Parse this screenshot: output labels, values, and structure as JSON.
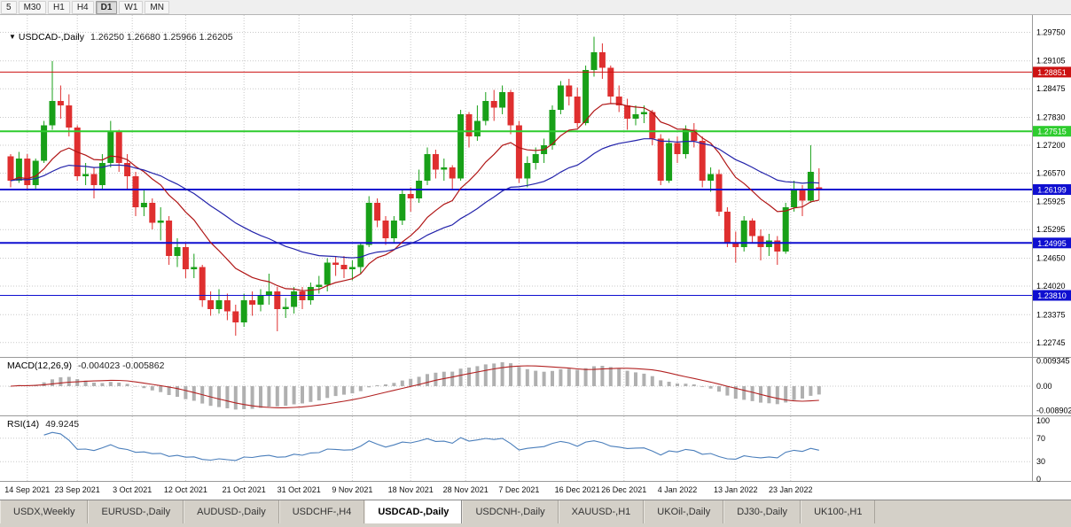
{
  "toolbar": {
    "periods": [
      {
        "label": "5",
        "active": false
      },
      {
        "label": "M30",
        "active": false
      },
      {
        "label": "H1",
        "active": false
      },
      {
        "label": "H4",
        "active": false
      },
      {
        "label": "D1",
        "active": true
      },
      {
        "label": "W1",
        "active": false
      },
      {
        "label": "MN",
        "active": false
      }
    ]
  },
  "price_pane": {
    "title_symbol": "USDCAD-,Daily",
    "title_ohlc": "1.26250 1.26680 1.25966 1.26205"
  },
  "macd_pane": {
    "label": "MACD(12,26,9)",
    "values": "-0.004023 -0.005862"
  },
  "rsi_pane": {
    "label": "RSI(14)",
    "value": "49.9245"
  },
  "tabs": {
    "items": [
      {
        "label": "USDX,Weekly",
        "active": false
      },
      {
        "label": "EURUSD-,Daily",
        "active": false
      },
      {
        "label": "AUDUSD-,Daily",
        "active": false
      },
      {
        "label": "USDCHF-,H4",
        "active": false
      },
      {
        "label": "USDCAD-,Daily",
        "active": true
      },
      {
        "label": "USDCNH-,Daily",
        "active": false
      },
      {
        "label": "XAUUSD-,H1",
        "active": false
      },
      {
        "label": "UKOil-,Daily",
        "active": false
      },
      {
        "label": "DJ30-,Daily",
        "active": false
      },
      {
        "label": "UK100-,H1",
        "active": false
      }
    ]
  },
  "colors": {
    "up": "#18a018",
    "down": "#df2f2f",
    "ma_fast": "#b01515",
    "ma_slow": "#2222aa",
    "macd_hist": "#b0b0b0",
    "macd_signal": "#b22222",
    "rsi": "#4a7ebb",
    "grid": "#c9c9c9",
    "axis_text": "#000000"
  },
  "chart_data": {
    "type": "candlestick",
    "symbol": "USDCAD-",
    "timeframe": "Daily",
    "title": "USDCAD-,Daily",
    "last_ohlc": {
      "open": 1.2625,
      "high": 1.2668,
      "low": 1.25966,
      "close": 1.26205
    },
    "price_axis_ticks": [
      1.2975,
      1.29105,
      1.28475,
      1.2783,
      1.272,
      1.2657,
      1.25925,
      1.25295,
      1.2465,
      1.2402,
      1.23375,
      1.22745
    ],
    "horizontal_lines": [
      {
        "price": 1.28851,
        "label": "1.28851",
        "color": "#cc1111",
        "width": 1
      },
      {
        "price": 1.27515,
        "label": "1.27515",
        "color": "#2ecc2e",
        "width": 2
      },
      {
        "price": 1.26199,
        "label": "1.26199",
        "color": "#0f0fd0",
        "width": 2
      },
      {
        "price": 1.24995,
        "label": "1.24995",
        "color": "#0f0fd0",
        "width": 2
      },
      {
        "price": 1.2381,
        "label": "1.23810",
        "color": "#0f0fd0",
        "width": 1
      }
    ],
    "x_labels": [
      {
        "t": "14 Sep 2021",
        "i": 2
      },
      {
        "t": "23 Sep 2021",
        "i": 8
      },
      {
        "t": "3 Oct 2021",
        "i": 14.6
      },
      {
        "t": "12 Oct 2021",
        "i": 21
      },
      {
        "t": "21 Oct 2021",
        "i": 28
      },
      {
        "t": "31 Oct 2021",
        "i": 34.6
      },
      {
        "t": "9 Nov 2021",
        "i": 41
      },
      {
        "t": "18 Nov 2021",
        "i": 48
      },
      {
        "t": "28 Nov 2021",
        "i": 54.6
      },
      {
        "t": "7 Dec 2021",
        "i": 61
      },
      {
        "t": "16 Dec 2021",
        "i": 68
      },
      {
        "t": "26 Dec 2021",
        "i": 73.6
      },
      {
        "t": "4 Jan 2022",
        "i": 80
      },
      {
        "t": "13 Jan 2022",
        "i": 87
      },
      {
        "t": "23 Jan 2022",
        "i": 93.6
      }
    ],
    "moving_averages": [
      {
        "period": 13,
        "method": "ema",
        "color": "#b01515"
      },
      {
        "period": 34,
        "method": "ema",
        "color": "#2222aa"
      }
    ],
    "macd": {
      "params": [
        12,
        26,
        9
      ],
      "current_macd": -0.004023,
      "current_signal": -0.005862,
      "axis_labels": [
        "0.009345",
        "0.00",
        "-0.008902"
      ],
      "axis_values": [
        0.009345,
        0,
        -0.008902
      ]
    },
    "rsi": {
      "period": 14,
      "current": 49.9245,
      "levels": [
        70,
        30
      ],
      "axis_labels": [
        "100",
        "70",
        "30",
        "0"
      ],
      "axis_values": [
        100,
        70,
        30,
        0
      ]
    },
    "candles": [
      [
        1.2695,
        1.27,
        1.2625,
        1.264
      ],
      [
        1.264,
        1.2705,
        1.2635,
        1.269
      ],
      [
        1.269,
        1.27,
        1.262,
        1.263
      ],
      [
        1.263,
        1.269,
        1.262,
        1.2685
      ],
      [
        1.2685,
        1.2775,
        1.268,
        1.2765
      ],
      [
        1.2765,
        1.291,
        1.2755,
        1.282
      ],
      [
        1.282,
        1.2855,
        1.278,
        1.281
      ],
      [
        1.281,
        1.2835,
        1.274,
        1.276
      ],
      [
        1.276,
        1.2765,
        1.264,
        1.265
      ],
      [
        1.265,
        1.268,
        1.263,
        1.2655
      ],
      [
        1.2655,
        1.267,
        1.26,
        1.263
      ],
      [
        1.263,
        1.27,
        1.262,
        1.268
      ],
      [
        1.268,
        1.2775,
        1.267,
        1.275
      ],
      [
        1.275,
        1.2755,
        1.266,
        1.268
      ],
      [
        1.268,
        1.27,
        1.262,
        1.265
      ],
      [
        1.265,
        1.266,
        1.256,
        1.258
      ],
      [
        1.258,
        1.262,
        1.256,
        1.259
      ],
      [
        1.259,
        1.26,
        1.253,
        1.2545
      ],
      [
        1.2545,
        1.258,
        1.2505,
        1.255
      ],
      [
        1.255,
        1.256,
        1.245,
        1.247
      ],
      [
        1.247,
        1.251,
        1.2445,
        1.249
      ],
      [
        1.249,
        1.25,
        1.242,
        1.244
      ],
      [
        1.244,
        1.2475,
        1.242,
        1.2445
      ],
      [
        1.2445,
        1.245,
        1.2355,
        1.237
      ],
      [
        1.237,
        1.239,
        1.2335,
        1.235
      ],
      [
        1.235,
        1.2395,
        1.234,
        1.237
      ],
      [
        1.237,
        1.2385,
        1.2325,
        1.2345
      ],
      [
        1.2345,
        1.236,
        1.229,
        1.232
      ],
      [
        1.232,
        1.2385,
        1.231,
        1.237
      ],
      [
        1.237,
        1.239,
        1.2335,
        1.236
      ],
      [
        1.236,
        1.2395,
        1.2345,
        1.238
      ],
      [
        1.238,
        1.243,
        1.236,
        1.239
      ],
      [
        1.239,
        1.24,
        1.23,
        1.235
      ],
      [
        1.235,
        1.2375,
        1.233,
        1.2355
      ],
      [
        1.2355,
        1.24,
        1.234,
        1.239
      ],
      [
        1.239,
        1.24,
        1.235,
        1.237
      ],
      [
        1.237,
        1.241,
        1.236,
        1.24
      ],
      [
        1.24,
        1.2425,
        1.2385,
        1.2405
      ],
      [
        1.2405,
        1.2465,
        1.239,
        1.2455
      ],
      [
        1.2455,
        1.247,
        1.2425,
        1.245
      ],
      [
        1.245,
        1.247,
        1.242,
        1.244
      ],
      [
        1.244,
        1.246,
        1.2415,
        1.2445
      ],
      [
        1.2445,
        1.25,
        1.243,
        1.2495
      ],
      [
        1.2495,
        1.2605,
        1.249,
        1.259
      ],
      [
        1.259,
        1.26,
        1.2535,
        1.255
      ],
      [
        1.255,
        1.256,
        1.2495,
        1.251
      ],
      [
        1.251,
        1.256,
        1.25,
        1.255
      ],
      [
        1.255,
        1.262,
        1.254,
        1.261
      ],
      [
        1.261,
        1.2625,
        1.257,
        1.26
      ],
      [
        1.26,
        1.2665,
        1.259,
        1.264
      ],
      [
        1.264,
        1.2715,
        1.263,
        1.27
      ],
      [
        1.27,
        1.271,
        1.2645,
        1.2665
      ],
      [
        1.2665,
        1.269,
        1.264,
        1.267
      ],
      [
        1.267,
        1.2675,
        1.262,
        1.2645
      ],
      [
        1.2645,
        1.28,
        1.264,
        1.279
      ],
      [
        1.279,
        1.2795,
        1.2715,
        1.274
      ],
      [
        1.274,
        1.281,
        1.273,
        1.2775
      ],
      [
        1.2775,
        1.284,
        1.2765,
        1.282
      ],
      [
        1.282,
        1.2845,
        1.2775,
        1.2805
      ],
      [
        1.2805,
        1.2855,
        1.279,
        1.284
      ],
      [
        1.284,
        1.2845,
        1.2745,
        1.2765
      ],
      [
        1.2765,
        1.2775,
        1.2635,
        1.2645
      ],
      [
        1.2645,
        1.2695,
        1.2625,
        1.268
      ],
      [
        1.268,
        1.2715,
        1.2665,
        1.27
      ],
      [
        1.27,
        1.2735,
        1.268,
        1.272
      ],
      [
        1.272,
        1.281,
        1.271,
        1.28
      ],
      [
        1.28,
        1.2865,
        1.279,
        1.2855
      ],
      [
        1.2855,
        1.287,
        1.281,
        1.283
      ],
      [
        1.283,
        1.285,
        1.276,
        1.277
      ],
      [
        1.277,
        1.29,
        1.2765,
        1.289
      ],
      [
        1.289,
        1.2965,
        1.2875,
        1.293
      ],
      [
        1.293,
        1.295,
        1.287,
        1.2895
      ],
      [
        1.2895,
        1.29,
        1.2815,
        1.283
      ],
      [
        1.283,
        1.2855,
        1.2795,
        1.281
      ],
      [
        1.281,
        1.2825,
        1.2755,
        1.278
      ],
      [
        1.278,
        1.281,
        1.2765,
        1.279
      ],
      [
        1.279,
        1.281,
        1.277,
        1.2795
      ],
      [
        1.2795,
        1.28,
        1.272,
        1.2735
      ],
      [
        1.2735,
        1.2745,
        1.263,
        1.264
      ],
      [
        1.264,
        1.2735,
        1.2635,
        1.2725
      ],
      [
        1.2725,
        1.274,
        1.268,
        1.27
      ],
      [
        1.27,
        1.2765,
        1.269,
        1.2755
      ],
      [
        1.2755,
        1.277,
        1.2715,
        1.273
      ],
      [
        1.273,
        1.274,
        1.2625,
        1.264
      ],
      [
        1.264,
        1.267,
        1.2615,
        1.2655
      ],
      [
        1.2655,
        1.2665,
        1.256,
        1.257
      ],
      [
        1.257,
        1.258,
        1.249,
        1.25
      ],
      [
        1.25,
        1.2525,
        1.2455,
        1.249
      ],
      [
        1.249,
        1.256,
        1.248,
        1.255
      ],
      [
        1.255,
        1.2555,
        1.25,
        1.2515
      ],
      [
        1.2515,
        1.253,
        1.246,
        1.249
      ],
      [
        1.249,
        1.252,
        1.247,
        1.2505
      ],
      [
        1.2505,
        1.2515,
        1.245,
        1.248
      ],
      [
        1.248,
        1.259,
        1.2475,
        1.258
      ],
      [
        1.258,
        1.264,
        1.257,
        1.262
      ],
      [
        1.262,
        1.263,
        1.256,
        1.2595
      ],
      [
        1.2595,
        1.272,
        1.259,
        1.266
      ],
      [
        1.2625,
        1.2668,
        1.25966,
        1.26205
      ]
    ]
  }
}
